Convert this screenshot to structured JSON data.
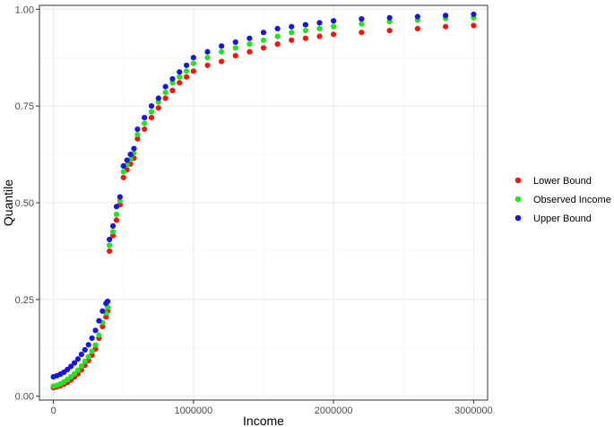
{
  "chart_data": {
    "type": "scatter",
    "xlabel": "Income",
    "ylabel": "Quantile",
    "xlim": [
      -100000,
      3100000
    ],
    "ylim": [
      -0.01,
      1.01
    ],
    "x_ticks": [
      0,
      1000000,
      2000000,
      3000000
    ],
    "x_tick_labels": [
      "0",
      "1000000",
      "2000000",
      "3000000"
    ],
    "y_ticks": [
      0,
      0.25,
      0.5,
      0.75,
      1
    ],
    "y_tick_labels": [
      "0.00",
      "0.25",
      "0.50",
      "0.75",
      "1.00"
    ],
    "grid": true,
    "legend_position": "right",
    "x": [
      0,
      25000,
      50000,
      75000,
      100000,
      125000,
      150000,
      175000,
      200000,
      225000,
      250000,
      275000,
      300000,
      325000,
      350000,
      375000,
      387000,
      400000,
      425000,
      450000,
      475000,
      500000,
      525000,
      550000,
      575000,
      600000,
      650000,
      700000,
      750000,
      800000,
      850000,
      900000,
      950000,
      1000000,
      1100000,
      1200000,
      1300000,
      1400000,
      1500000,
      1600000,
      1700000,
      1800000,
      1900000,
      2000000,
      2200000,
      2400000,
      2600000,
      2800000,
      3000000
    ],
    "series": [
      {
        "name": "Lower Bound",
        "color": "#f8130b",
        "values": [
          0.022,
          0.024,
          0.027,
          0.031,
          0.036,
          0.042,
          0.05,
          0.058,
          0.068,
          0.08,
          0.092,
          0.106,
          0.122,
          0.15,
          0.18,
          0.205,
          0.22,
          0.375,
          0.415,
          0.455,
          0.495,
          0.565,
          0.585,
          0.6,
          0.615,
          0.665,
          0.69,
          0.72,
          0.745,
          0.77,
          0.79,
          0.81,
          0.825,
          0.84,
          0.855,
          0.865,
          0.88,
          0.89,
          0.9,
          0.91,
          0.92,
          0.925,
          0.93,
          0.935,
          0.94,
          0.945,
          0.95,
          0.955,
          0.958
        ]
      },
      {
        "name": "Observed Income",
        "color": "#1fe41f",
        "values": [
          0.026,
          0.028,
          0.032,
          0.037,
          0.043,
          0.05,
          0.058,
          0.067,
          0.078,
          0.09,
          0.102,
          0.116,
          0.132,
          0.158,
          0.19,
          0.215,
          0.23,
          0.39,
          0.425,
          0.47,
          0.505,
          0.58,
          0.598,
          0.612,
          0.628,
          0.676,
          0.705,
          0.735,
          0.76,
          0.785,
          0.81,
          0.825,
          0.84,
          0.86,
          0.875,
          0.89,
          0.9,
          0.91,
          0.92,
          0.93,
          0.94,
          0.945,
          0.95,
          0.955,
          0.962,
          0.968,
          0.972,
          0.976,
          0.978
        ]
      },
      {
        "name": "Upper Bound",
        "color": "#1a14e0",
        "values": [
          0.05,
          0.053,
          0.057,
          0.062,
          0.069,
          0.077,
          0.086,
          0.096,
          0.108,
          0.12,
          0.133,
          0.15,
          0.17,
          0.195,
          0.22,
          0.24,
          0.245,
          0.405,
          0.44,
          0.49,
          0.515,
          0.595,
          0.61,
          0.625,
          0.64,
          0.69,
          0.72,
          0.75,
          0.77,
          0.8,
          0.82,
          0.838,
          0.855,
          0.875,
          0.89,
          0.905,
          0.915,
          0.925,
          0.94,
          0.95,
          0.955,
          0.96,
          0.965,
          0.97,
          0.975,
          0.978,
          0.981,
          0.984,
          0.987
        ]
      }
    ]
  }
}
